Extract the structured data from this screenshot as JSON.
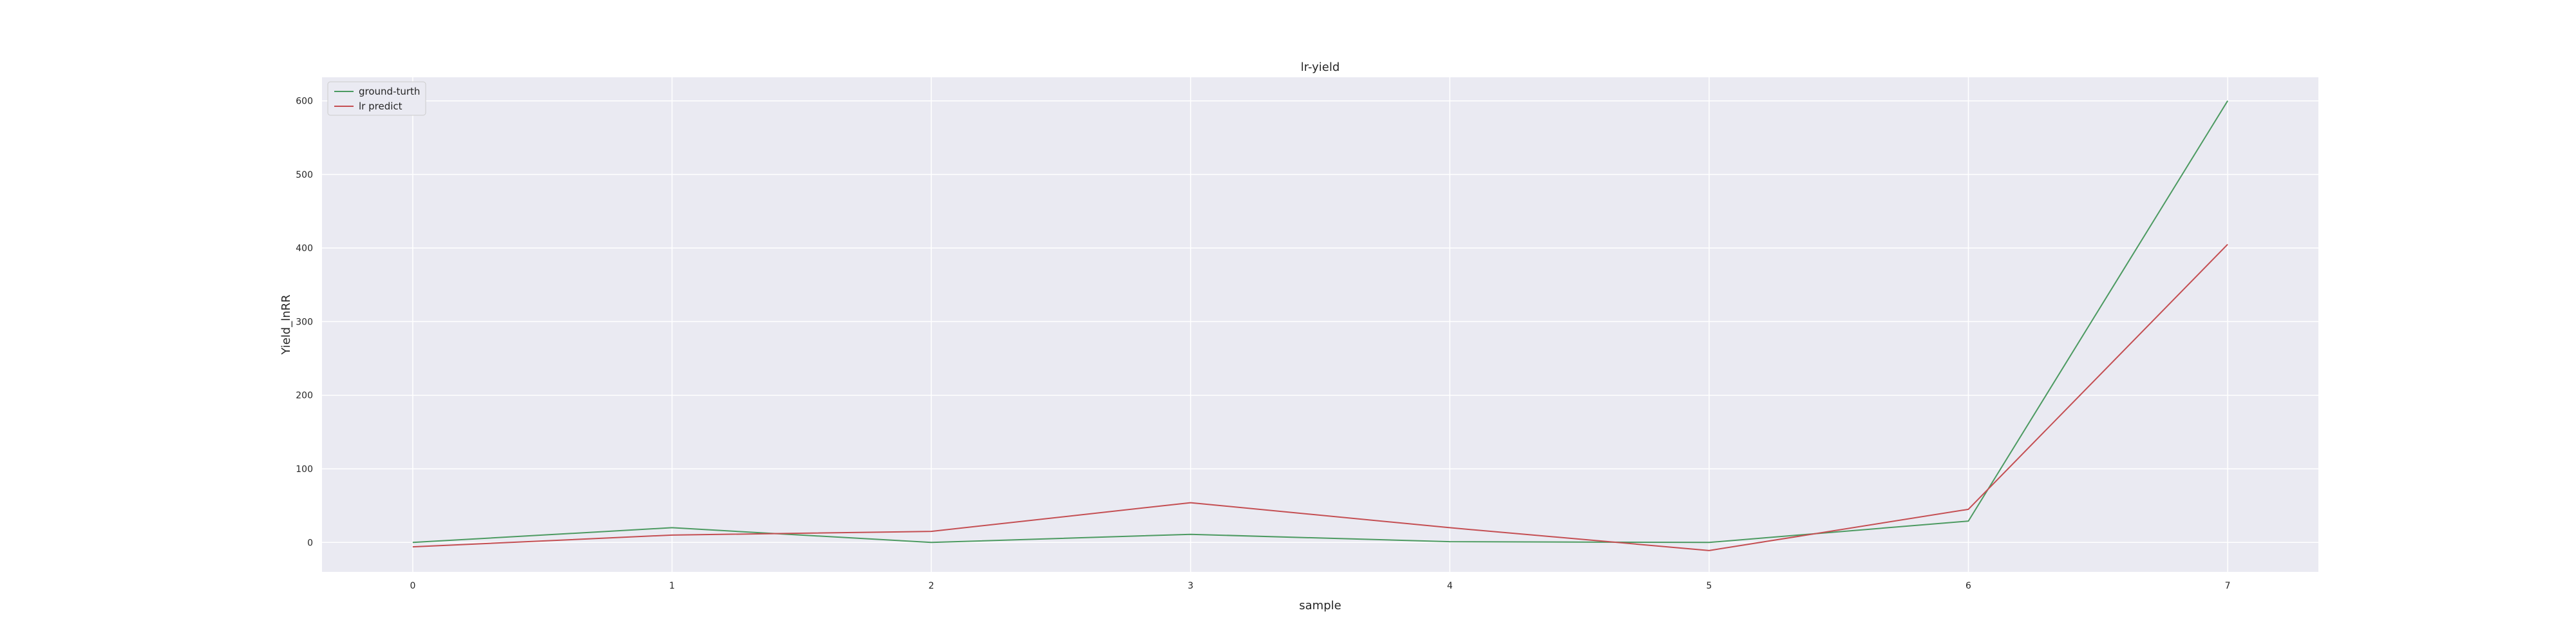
{
  "chart_data": {
    "type": "line",
    "title": "lr-yield",
    "xlabel": "sample",
    "ylabel": "Yield_lnRR",
    "x": [
      0,
      1,
      2,
      3,
      4,
      5,
      6,
      7
    ],
    "xticks": [
      "0",
      "1",
      "2",
      "3",
      "4",
      "5",
      "6",
      "7"
    ],
    "yticks": [
      "0",
      "100",
      "200",
      "300",
      "400",
      "500",
      "600"
    ],
    "ytick_values": [
      0,
      100,
      200,
      300,
      400,
      500,
      600
    ],
    "xlim": [
      -0.35,
      7.35
    ],
    "ylim": [
      -40,
      632
    ],
    "grid": true,
    "legend_position": "top-left",
    "series": [
      {
        "name": "ground-turth",
        "color": "#4c9a61",
        "values": [
          0,
          20,
          0,
          11,
          1,
          0,
          29,
          600
        ]
      },
      {
        "name": "lr predict",
        "color": "#c44e52",
        "values": [
          -6,
          10,
          15,
          54,
          20,
          -11,
          45,
          405
        ]
      }
    ],
    "colors": {
      "plot_bg": "#eaeaf2",
      "grid": "#ffffff",
      "text": "#262626"
    }
  }
}
